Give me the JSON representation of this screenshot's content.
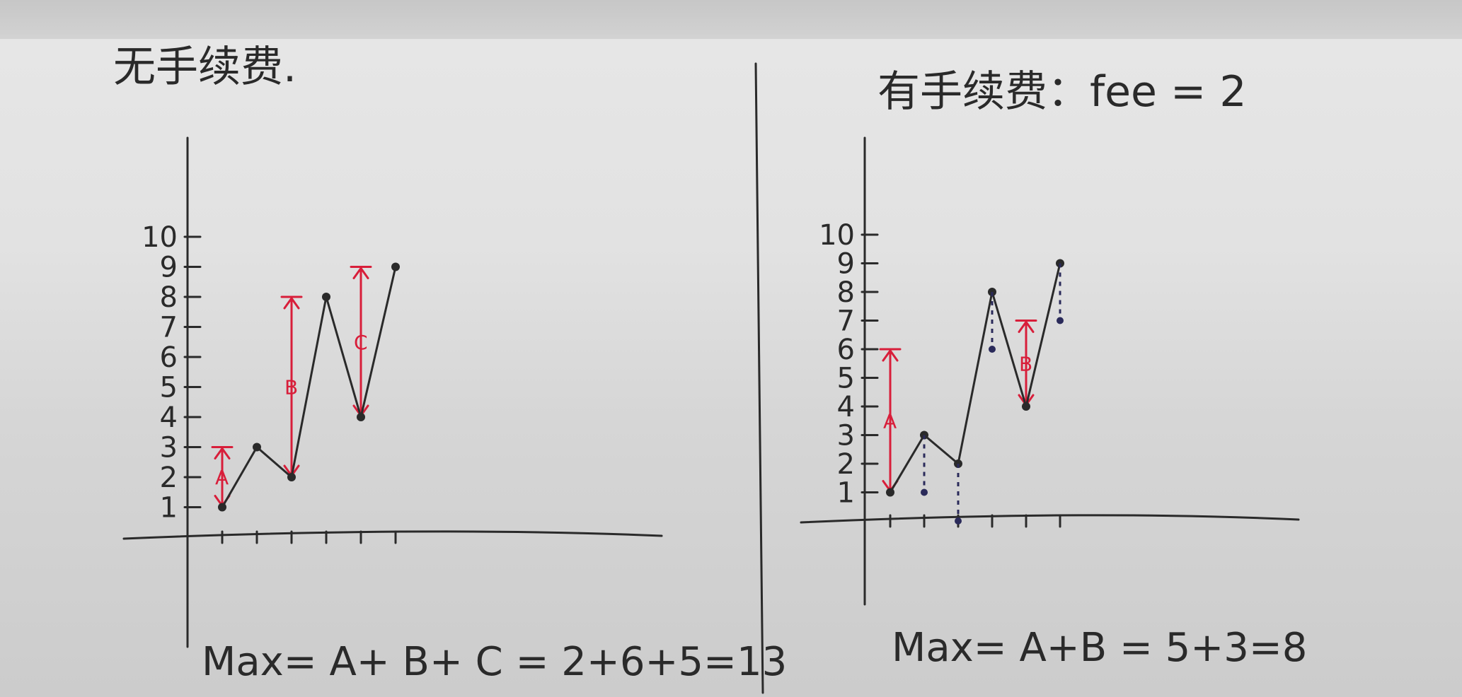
{
  "chart_data": [
    {
      "type": "line",
      "title": "无手续费.",
      "y_ticks": [
        "1",
        "2",
        "3",
        "4",
        "5",
        "6",
        "7",
        "8",
        "9",
        "10"
      ],
      "x": [
        1,
        2,
        3,
        4,
        5,
        6
      ],
      "values": [
        1,
        3,
        2,
        8,
        4,
        9
      ],
      "ylim": [
        0,
        10.5
      ],
      "annotations": [
        {
          "label": "A",
          "from": 1,
          "to": 3,
          "at_x": 1
        },
        {
          "label": "B",
          "from": 2,
          "to": 8,
          "at_x": 3
        },
        {
          "label": "C",
          "from": 4,
          "to": 9,
          "at_x": 5
        }
      ],
      "formula": "Max= A+ B+ C = 2+6+5=13"
    },
    {
      "type": "line",
      "title": "有手续费：fee = 2",
      "y_ticks": [
        "1",
        "2",
        "3",
        "4",
        "5",
        "6",
        "7",
        "8",
        "9",
        "10"
      ],
      "x": [
        1,
        2,
        3,
        4,
        5,
        6
      ],
      "values": [
        1,
        3,
        2,
        8,
        4,
        9
      ],
      "ylim": [
        0,
        10.5
      ],
      "annotations": [
        {
          "label": "A",
          "from": 1,
          "to": 6,
          "at_x": 1
        },
        {
          "label": "B",
          "from": 4,
          "to": 7,
          "at_x": 5
        }
      ],
      "formula": "Max= A+B = 5+3=8"
    }
  ],
  "colors": {
    "ink": "#2a2a2a",
    "annotation": "#d81e3a",
    "paper": "#e2e2e2"
  }
}
